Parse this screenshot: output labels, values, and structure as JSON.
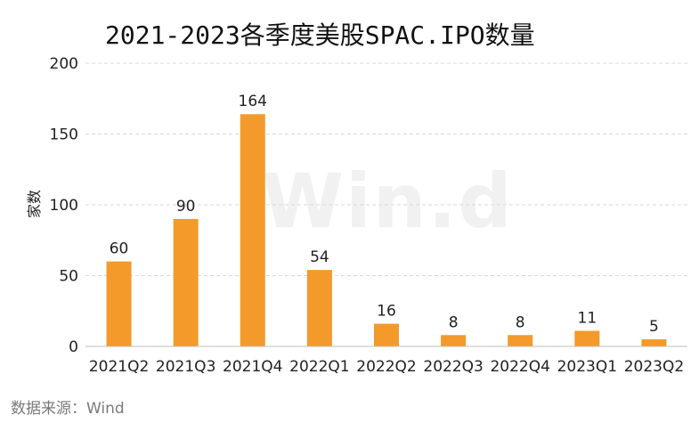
{
  "source_note": "数据来源：Wind",
  "watermark": "Win.d",
  "colors": {
    "bar": "#f39a2b",
    "grid": "#d9d9d9",
    "axis": "#bfbfbf"
  },
  "chart_data": {
    "type": "bar",
    "title": "2021-2023各季度美股SPAC.IPO数量",
    "xlabel": "",
    "ylabel": "家数",
    "categories": [
      "2021Q2",
      "2021Q3",
      "2021Q4",
      "2022Q1",
      "2022Q2",
      "2022Q3",
      "2022Q4",
      "2023Q1",
      "2023Q2"
    ],
    "values": [
      60,
      90,
      164,
      54,
      16,
      8,
      8,
      11,
      5
    ],
    "ylim": [
      0,
      200
    ],
    "yticks": [
      0,
      50,
      100,
      150,
      200
    ],
    "grid": true,
    "grid_style": "dashed",
    "legend": "none",
    "data_labels": true
  }
}
